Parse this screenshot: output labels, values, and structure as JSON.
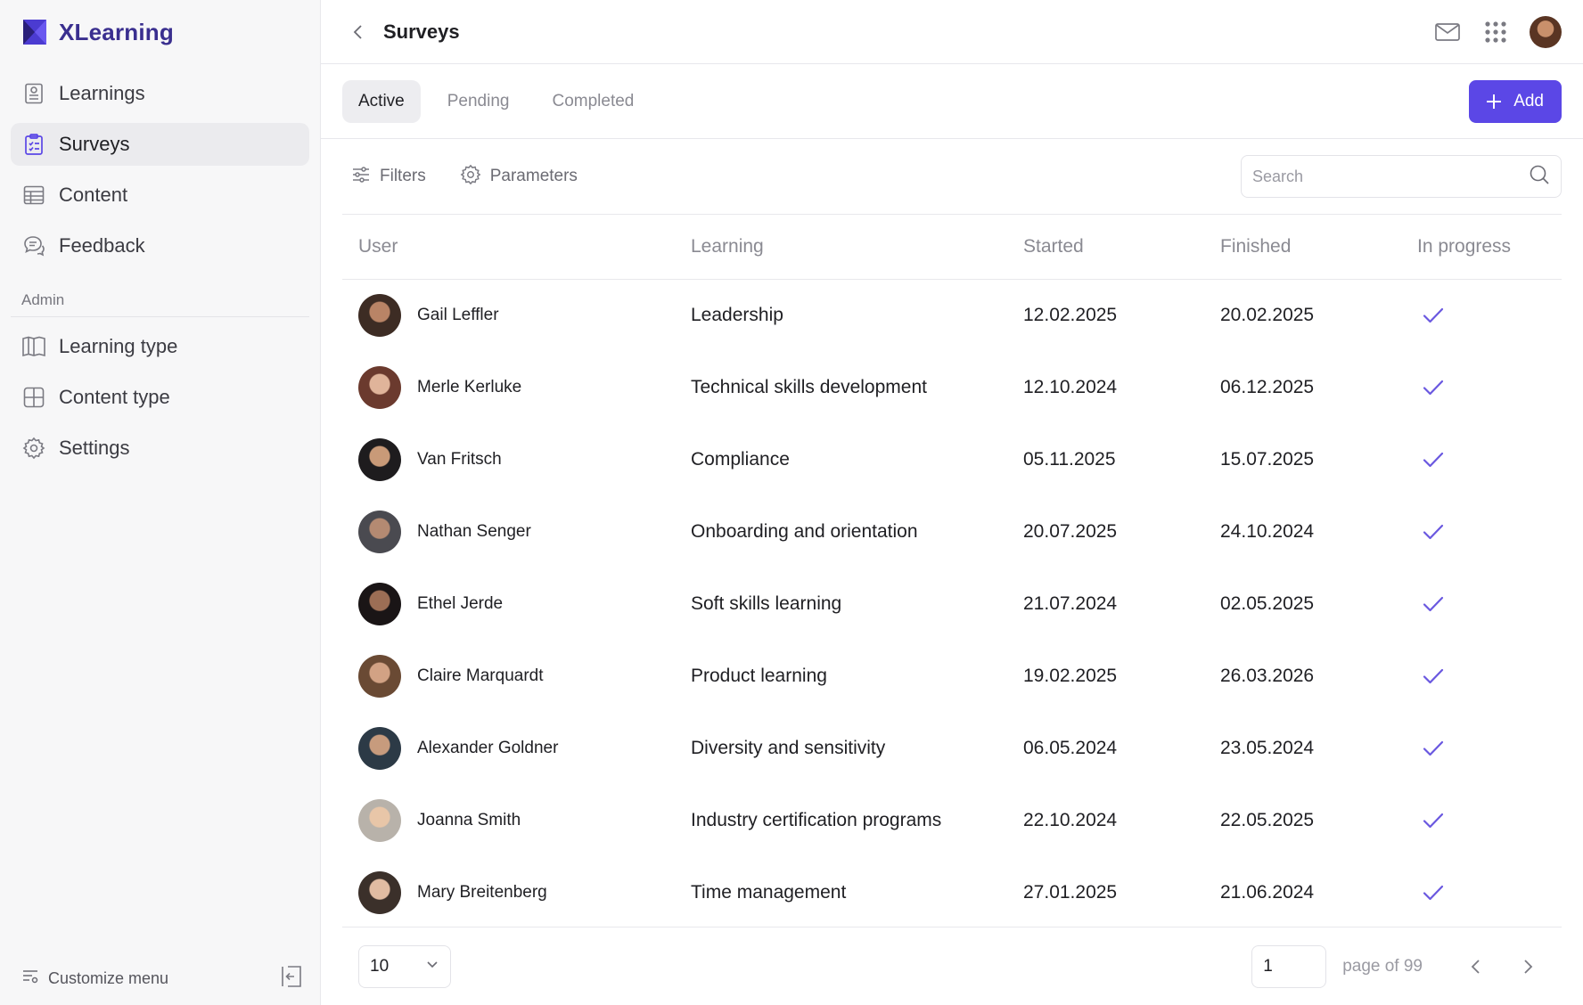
{
  "app": {
    "name": "XLearning"
  },
  "sidebar": {
    "items": [
      {
        "label": "Learnings",
        "icon": "document-icon"
      },
      {
        "label": "Surveys",
        "icon": "clipboard-checklist-icon",
        "active": true
      },
      {
        "label": "Content",
        "icon": "table-icon"
      },
      {
        "label": "Feedback",
        "icon": "chat-bubbles-icon"
      }
    ],
    "admin_label": "Admin",
    "admin_items": [
      {
        "label": "Learning type",
        "icon": "book-open-icon"
      },
      {
        "label": "Content type",
        "icon": "grid-icon"
      },
      {
        "label": "Settings",
        "icon": "gear-icon"
      }
    ],
    "customize_label": "Customize menu"
  },
  "header": {
    "title": "Surveys"
  },
  "tabs": [
    {
      "label": "Active",
      "active": true
    },
    {
      "label": "Pending"
    },
    {
      "label": "Completed"
    }
  ],
  "add_button": {
    "label": "Add"
  },
  "toolbar": {
    "filters_label": "Filters",
    "parameters_label": "Parameters",
    "search_placeholder": "Search"
  },
  "table": {
    "headers": [
      "User",
      "Learning",
      "Started",
      "Finished",
      "In progress"
    ],
    "rows": [
      {
        "user": "Gail Leffler",
        "learning": "Leadership",
        "started": "12.02.2025",
        "finished": "20.02.2025",
        "in_progress": true
      },
      {
        "user": "Merle Kerluke",
        "learning": "Technical skills development",
        "started": "12.10.2024",
        "finished": "06.12.2025",
        "in_progress": true
      },
      {
        "user": "Van Fritsch",
        "learning": "Compliance",
        "started": "05.11.2025",
        "finished": "15.07.2025",
        "in_progress": true
      },
      {
        "user": "Nathan Senger",
        "learning": "Onboarding and orientation",
        "started": "20.07.2025",
        "finished": "24.10.2024",
        "in_progress": true
      },
      {
        "user": "Ethel Jerde",
        "learning": "Soft skills learning",
        "started": "21.07.2024",
        "finished": "02.05.2025",
        "in_progress": true
      },
      {
        "user": "Claire Marquardt",
        "learning": "Product learning",
        "started": "19.02.2025",
        "finished": "26.03.2026",
        "in_progress": true
      },
      {
        "user": "Alexander Goldner",
        "learning": "Diversity and sensitivity",
        "started": "06.05.2024",
        "finished": "23.05.2024",
        "in_progress": true
      },
      {
        "user": "Joanna Smith",
        "learning": "Industry certification programs",
        "started": "22.10.2024",
        "finished": "22.05.2025",
        "in_progress": true
      },
      {
        "user": "Mary Breitenberg",
        "learning": "Time management",
        "started": "27.01.2025",
        "finished": "21.06.2024",
        "in_progress": true
      }
    ]
  },
  "pagination": {
    "page_size": "10",
    "current_page": "1",
    "page_of_label": "page of 99"
  },
  "colors": {
    "accent": "#5b47e6",
    "brand": "#3a2f8f",
    "check": "#6a58e0"
  }
}
